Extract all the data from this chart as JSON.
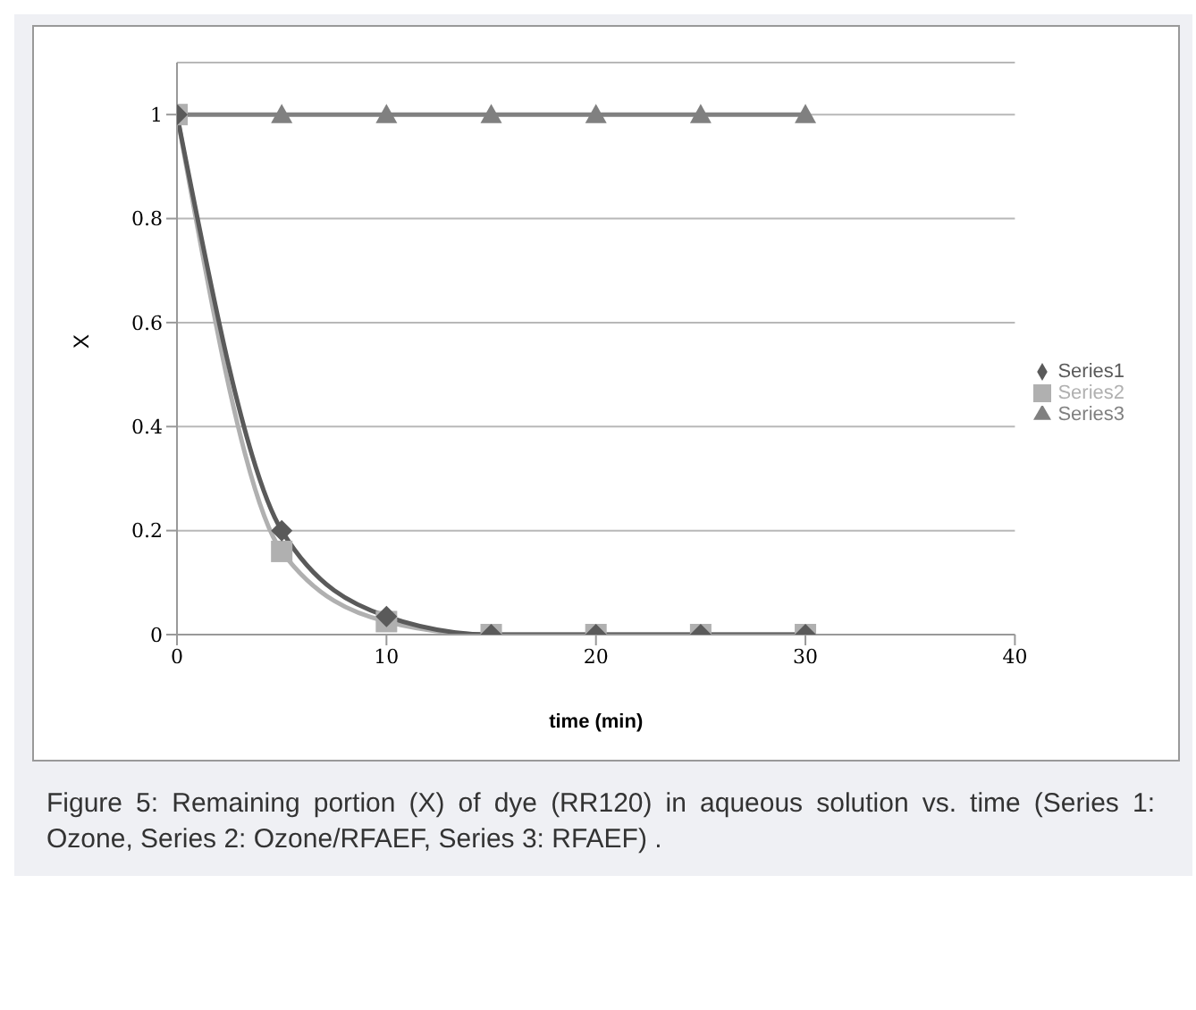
{
  "chart_data": {
    "type": "line",
    "xlabel": "time (min)",
    "ylabel": "X",
    "x": [
      0,
      5,
      10,
      15,
      20,
      25,
      30
    ],
    "series": [
      {
        "name": "Series1",
        "color": "#5a5a5a",
        "marker": "diamond",
        "values": [
          1,
          0.2,
          0.035,
          0,
          0,
          0,
          0
        ]
      },
      {
        "name": "Series2",
        "color": "#b0b0b0",
        "marker": "square",
        "values": [
          1,
          0.16,
          0.025,
          0,
          0,
          0,
          0
        ]
      },
      {
        "name": "Series3",
        "color": "#808080",
        "marker": "triangle",
        "values": [
          1,
          1,
          1,
          1,
          1,
          1,
          1
        ]
      }
    ],
    "xlim": [
      0,
      40
    ],
    "xticks": [
      0,
      10,
      20,
      30,
      40
    ],
    "ylim": [
      0,
      1.1
    ],
    "yticks": [
      0,
      0.2,
      0.4,
      0.6,
      0.8,
      1
    ],
    "grid": "y",
    "legend": "right",
    "annotations": [
      "Figure 5: Remaining portion (X) of dye (RR120) in aqueous solution vs. time (Series 1: Ozone, Series 2: Ozone/RFAEF, Series 3: RFAEF) ."
    ]
  }
}
